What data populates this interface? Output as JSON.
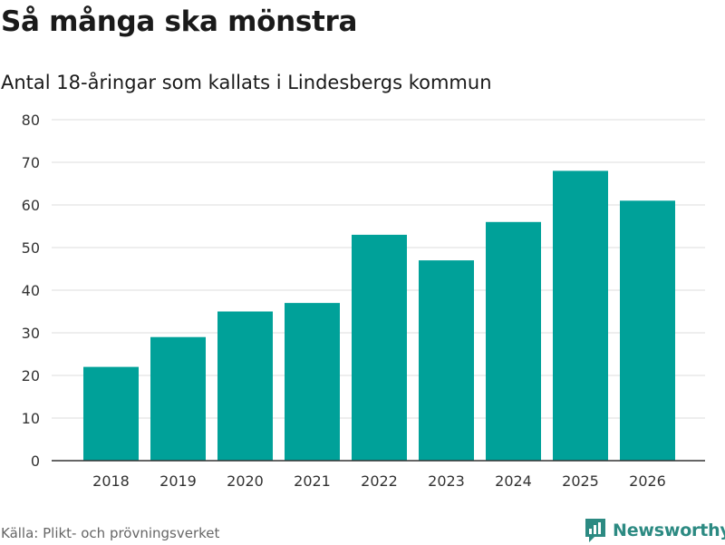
{
  "title": "Så många ska mönstra",
  "subtitle": "Antal 18-åringar som kallats i Lindesbergs kommun",
  "source": "Källa: Plikt- och prövningsverket",
  "brand": {
    "name": "Newsworthy",
    "icon": "newsworthy-logo-icon",
    "color": "#2c8a82"
  },
  "colors": {
    "bar": "#00a199",
    "grid": "#dddddd",
    "axis": "#333333"
  },
  "chart_data": {
    "type": "bar",
    "title": "Så många ska mönstra",
    "subtitle": "Antal 18-åringar som kallats i Lindesbergs kommun",
    "xlabel": "",
    "ylabel": "",
    "categories": [
      "2018",
      "2019",
      "2020",
      "2021",
      "2022",
      "2023",
      "2024",
      "2025",
      "2026"
    ],
    "values": [
      22,
      29,
      35,
      37,
      53,
      47,
      56,
      68,
      61
    ],
    "ylim": [
      0,
      80
    ],
    "yticks": [
      0,
      10,
      20,
      30,
      40,
      50,
      60,
      70,
      80
    ],
    "grid": true,
    "legend": "none"
  }
}
